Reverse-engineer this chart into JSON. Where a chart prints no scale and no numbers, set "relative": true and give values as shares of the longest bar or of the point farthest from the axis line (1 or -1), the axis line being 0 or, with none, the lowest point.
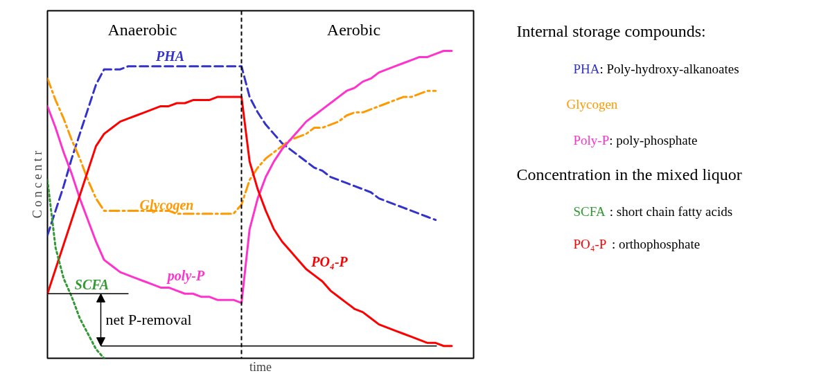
{
  "chart_data": {
    "type": "line",
    "relative": true,
    "xlabel": "time",
    "ylabel": "C o n c e n t r",
    "categories": [
      null,
      null,
      null,
      null,
      null,
      null,
      null,
      null,
      null,
      null,
      null,
      null,
      null,
      null,
      null,
      null,
      null,
      null,
      null,
      null,
      null,
      null,
      null,
      null,
      null,
      null,
      null,
      null,
      null,
      null,
      null,
      null,
      null,
      null,
      null,
      null,
      null,
      null,
      null,
      null,
      null,
      null,
      null,
      null,
      null,
      null,
      null,
      null,
      null,
      null,
      null
    ],
    "series": [
      {
        "name": "PHA",
        "color": "#3333cc",
        "line_style": "dashed",
        "values": [
          0.4,
          0.48,
          0.56,
          0.65,
          0.73,
          0.81,
          0.89,
          0.94,
          0.94,
          0.94,
          0.95,
          0.95,
          0.95,
          0.95,
          0.95,
          0.95,
          0.95,
          0.95,
          0.95,
          0.95,
          0.95,
          0.95,
          0.95,
          0.95,
          0.95,
          0.85,
          0.8,
          0.76,
          0.73,
          0.7,
          0.68,
          0.66,
          0.64,
          0.62,
          0.61,
          0.59,
          0.58,
          0.57,
          0.56,
          0.55,
          0.54,
          0.52,
          0.51,
          0.5,
          0.49,
          0.48,
          0.47,
          0.46,
          0.45,
          null,
          null
        ]
      },
      {
        "name": "Glycogen",
        "color": "#ff9900",
        "line_style": "dashdot",
        "values": [
          0.91,
          0.84,
          0.78,
          0.71,
          0.65,
          0.58,
          0.52,
          0.48,
          0.48,
          0.48,
          0.48,
          0.48,
          0.48,
          0.48,
          0.48,
          0.48,
          0.47,
          0.47,
          0.47,
          0.47,
          0.47,
          0.47,
          0.47,
          0.47,
          0.5,
          0.58,
          0.62,
          0.65,
          0.67,
          0.69,
          0.71,
          0.72,
          0.73,
          0.75,
          0.75,
          0.76,
          0.77,
          0.79,
          0.8,
          0.8,
          0.81,
          0.82,
          0.83,
          0.84,
          0.85,
          0.85,
          0.86,
          0.87,
          0.87,
          null,
          null
        ]
      },
      {
        "name": "poly-P",
        "color": "#ff33cc",
        "line_style": "solid",
        "values": [
          0.82,
          0.75,
          0.67,
          0.6,
          0.52,
          0.45,
          0.38,
          0.32,
          0.3,
          0.28,
          0.27,
          0.26,
          0.25,
          0.24,
          0.23,
          0.23,
          0.22,
          0.21,
          0.21,
          0.2,
          0.2,
          0.19,
          0.19,
          0.19,
          0.18,
          0.42,
          0.52,
          0.59,
          0.64,
          0.68,
          0.71,
          0.74,
          0.77,
          0.79,
          0.81,
          0.83,
          0.85,
          0.87,
          0.88,
          0.9,
          0.91,
          0.93,
          0.94,
          0.95,
          0.96,
          0.97,
          0.98,
          0.98,
          0.99,
          1.0,
          1.0
        ]
      },
      {
        "name": "PO₄-P",
        "color": "#ff0000",
        "line_style": "solid",
        "values": [
          0.21,
          0.29,
          0.37,
          0.45,
          0.53,
          0.61,
          0.69,
          0.73,
          0.75,
          0.77,
          0.78,
          0.79,
          0.8,
          0.81,
          0.82,
          0.82,
          0.83,
          0.83,
          0.84,
          0.84,
          0.84,
          0.85,
          0.85,
          0.85,
          0.85,
          0.64,
          0.55,
          0.48,
          0.42,
          0.38,
          0.35,
          0.32,
          0.29,
          0.27,
          0.25,
          0.22,
          0.2,
          0.18,
          0.16,
          0.15,
          0.13,
          0.11,
          0.1,
          0.09,
          0.08,
          0.07,
          0.06,
          0.05,
          0.05,
          0.04,
          0.04
        ]
      },
      {
        "name": "SCFA",
        "color": "#339933",
        "line_style": "dotted",
        "values": [
          0.58,
          0.36,
          0.26,
          0.2,
          0.13,
          0.08,
          0.03,
          0.0,
          null,
          null,
          null,
          null,
          null,
          null,
          null,
          null,
          null,
          null,
          null,
          null,
          null,
          null,
          null,
          null,
          null,
          null,
          null,
          null,
          null,
          null,
          null,
          null,
          null,
          null,
          null,
          null,
          null,
          null,
          null,
          null,
          null,
          null,
          null,
          null,
          null,
          null,
          null,
          null,
          null,
          null,
          null
        ]
      }
    ],
    "ref_lines": [
      {
        "axis": "y",
        "value": 0.21,
        "color": "#000000"
      },
      {
        "axis": "y",
        "value": 0.04,
        "color": "#000000"
      }
    ],
    "annotations": [
      "Anaerobic",
      "Aerobic",
      "net P-removal",
      "Internal storage compounds:",
      "PHA: Poly-hydroxy-alkanoates",
      "Glycogen",
      "Poly-P: poly-phosphate",
      "Concentration in the mixed liquor",
      "SCFA : short chain fatty acids",
      "PO₄-P : orthophosphate"
    ]
  }
}
